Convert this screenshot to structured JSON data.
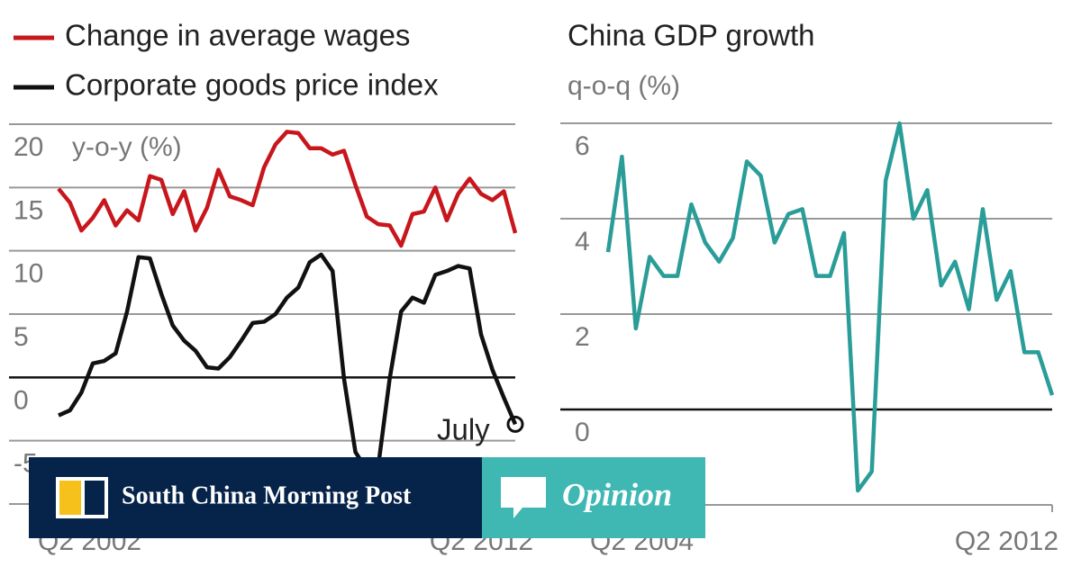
{
  "chart_data": [
    {
      "type": "line",
      "y_label": "y-o-y (%)",
      "categories": [
        "Q2 2002",
        null,
        null,
        null,
        null,
        null,
        null,
        null,
        null,
        null,
        null,
        null,
        null,
        null,
        null,
        null,
        null,
        null,
        null,
        null,
        null,
        null,
        null,
        null,
        null,
        null,
        null,
        null,
        null,
        null,
        null,
        null,
        null,
        null,
        null,
        null,
        null,
        null,
        null,
        null,
        "Q2 2012"
      ],
      "series": [
        {
          "name": "Change in average wages",
          "color": "#c8161d",
          "values": [
            14.9,
            13.8,
            11.6,
            12.6,
            14,
            12,
            13.2,
            12.4,
            15.9,
            15.6,
            12.9,
            14.7,
            11.6,
            13.4,
            16.4,
            14.3,
            14,
            13.6,
            16.6,
            18.4,
            19.4,
            19.3,
            18.1,
            18.1,
            17.6,
            17.9,
            15.2,
            12.7,
            12.1,
            12,
            10.4,
            12.9,
            13.1,
            15,
            12.4,
            14.5,
            15.7,
            14.5,
            14,
            14.7,
            11.4
          ]
        },
        {
          "name": "Corporate goods price index",
          "color": "#111111",
          "values": [
            -3,
            -2.6,
            -1.2,
            1.1,
            1.3,
            1.9,
            5.2,
            9.5,
            9.4,
            6.6,
            4.1,
            2.9,
            2.1,
            0.8,
            0.7,
            1.6,
            2.9,
            4.3,
            4.4,
            5,
            6.3,
            7.1,
            9.1,
            9.7,
            8.4,
            -0.1,
            -5.9,
            -7.3,
            -7,
            -0.1,
            5.2,
            6.3,
            5.9,
            8.1,
            8.4,
            8.8,
            8.6,
            3.4,
            0.6,
            -1.6,
            -3.7
          ]
        }
      ],
      "annotations": [
        "July",
        "-3.7"
      ],
      "ylim": [
        -10,
        20
      ],
      "yticks": [
        20,
        15,
        10,
        5,
        0,
        -5
      ],
      "grid": true,
      "legend": "top-left"
    },
    {
      "type": "line",
      "title": "China GDP growth",
      "y_label": "q-o-q (%)",
      "categories": [
        "Q2 2004",
        null,
        null,
        null,
        null,
        null,
        null,
        null,
        null,
        null,
        null,
        null,
        null,
        null,
        null,
        null,
        null,
        null,
        null,
        null,
        null,
        null,
        null,
        null,
        null,
        null,
        null,
        null,
        null,
        null,
        null,
        null,
        "Q2 2012"
      ],
      "series": [
        {
          "color": "#2a9d98",
          "values": [
            3.3,
            5.3,
            1.7,
            3.2,
            2.8,
            2.8,
            4.3,
            3.5,
            3.1,
            3.6,
            5.2,
            4.9,
            3.5,
            4.1,
            4.2,
            2.8,
            2.8,
            3.7,
            -1.7,
            -1.3,
            4.8,
            6.0,
            4.0,
            4.6,
            2.6,
            3.1,
            2.1,
            4.2,
            2.3,
            2.9,
            1.2,
            1.2,
            0.3
          ]
        }
      ],
      "ylim": [
        -2,
        6
      ],
      "yticks": [
        6,
        4,
        2,
        0
      ],
      "grid": true
    }
  ],
  "banner": {
    "brand": "South China Morning Post",
    "label": "Opinion"
  }
}
